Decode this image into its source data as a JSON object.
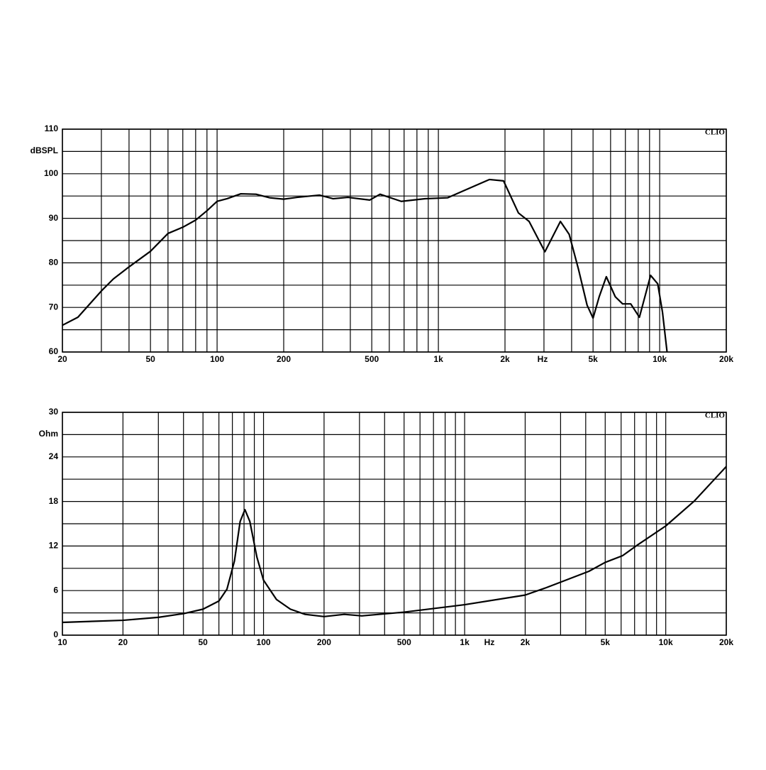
{
  "chart_data": [
    {
      "type": "line",
      "xscale": "log",
      "ylabel": "dBSPL",
      "xlabel": "Hz",
      "brand": "CLIO",
      "x": [
        20,
        23.5,
        30,
        34,
        40,
        50,
        60,
        70,
        80,
        90,
        100,
        111,
        128,
        150,
        173,
        200,
        230,
        290,
        334,
        390,
        490,
        545,
        680,
        870,
        1100,
        1360,
        1700,
        1970,
        2300,
        2570,
        3030,
        3560,
        3900,
        4300,
        4700,
        5000,
        5330,
        5740,
        6300,
        6800,
        7400,
        8100,
        9100,
        9800,
        10300,
        10800
      ],
      "series": [
        {
          "color": "#000000",
          "values": [
            66,
            67.8,
            73.7,
            76.4,
            79.1,
            82.6,
            86.6,
            88,
            89.6,
            91.7,
            93.8,
            94.4,
            95.5,
            95.4,
            94.6,
            94.3,
            94.7,
            95.2,
            94.4,
            94.7,
            94.1,
            95.4,
            93.8,
            94.4,
            94.6,
            96.6,
            98.7,
            98.4,
            91.2,
            89.3,
            82.5,
            89.3,
            86.4,
            78.5,
            70.5,
            67.6,
            72.4,
            76.9,
            72.4,
            70.8,
            70.8,
            67.8,
            77.2,
            75.3,
            68.9,
            60
          ]
        }
      ],
      "xlim": [
        20,
        20000
      ],
      "ylim": [
        60,
        110
      ],
      "xticks": [
        20,
        50,
        100,
        200,
        500,
        {
          "value": 1000,
          "label": "1k"
        },
        {
          "value": 2000,
          "label": "2k"
        },
        {
          "value": 5000,
          "label": "5k"
        },
        {
          "value": 10000,
          "label": "10k"
        },
        {
          "value": 20000,
          "label": "20k"
        }
      ],
      "xminorticks": [
        30,
        40,
        60,
        70,
        80,
        90,
        300,
        400,
        600,
        700,
        800,
        900,
        3000,
        4000,
        6000,
        7000,
        8000,
        9000
      ],
      "yticks": [
        60,
        70,
        80,
        90,
        100,
        110
      ],
      "yminorticks": [
        65,
        75,
        85,
        95,
        105
      ],
      "grid": true
    },
    {
      "type": "line",
      "xscale": "log",
      "ylabel": "Ohm",
      "xlabel": "Hz",
      "brand": "CLIO",
      "x": [
        10,
        20,
        30,
        40,
        50,
        60,
        65.8,
        71.7,
        76.5,
        80.8,
        85.5,
        92.7,
        100,
        116,
        136,
        161,
        200,
        252,
        308,
        500,
        1000,
        2000,
        2550,
        4150,
        5000,
        6100,
        7200,
        10000,
        13800,
        20000
      ],
      "series": [
        {
          "color": "#000000",
          "values": [
            1.72,
            2.0,
            2.4,
            2.9,
            3.5,
            4.6,
            6.2,
            10.0,
            15.3,
            16.9,
            15.3,
            10.5,
            7.4,
            4.8,
            3.5,
            2.8,
            2.5,
            2.8,
            2.6,
            3.1,
            4.1,
            5.4,
            6.4,
            8.6,
            9.8,
            10.7,
            12.1,
            14.7,
            18.0,
            22.7
          ]
        }
      ],
      "xlim": [
        10,
        20000
      ],
      "ylim": [
        0,
        30
      ],
      "xticks": [
        10,
        20,
        50,
        100,
        200,
        500,
        {
          "value": 1000,
          "label": "1k"
        },
        {
          "value": 2000,
          "label": "2k"
        },
        {
          "value": 5000,
          "label": "5k"
        },
        {
          "value": 10000,
          "label": "10k"
        },
        {
          "value": 20000,
          "label": "20k"
        }
      ],
      "xminorticks": [
        30,
        40,
        60,
        70,
        80,
        90,
        300,
        400,
        600,
        700,
        800,
        900,
        3000,
        4000,
        6000,
        7000,
        8000,
        9000
      ],
      "yticks": [
        0,
        6,
        12,
        18,
        24,
        30
      ],
      "yminorticks": [
        3,
        9,
        15,
        21,
        27
      ],
      "grid": true
    }
  ]
}
